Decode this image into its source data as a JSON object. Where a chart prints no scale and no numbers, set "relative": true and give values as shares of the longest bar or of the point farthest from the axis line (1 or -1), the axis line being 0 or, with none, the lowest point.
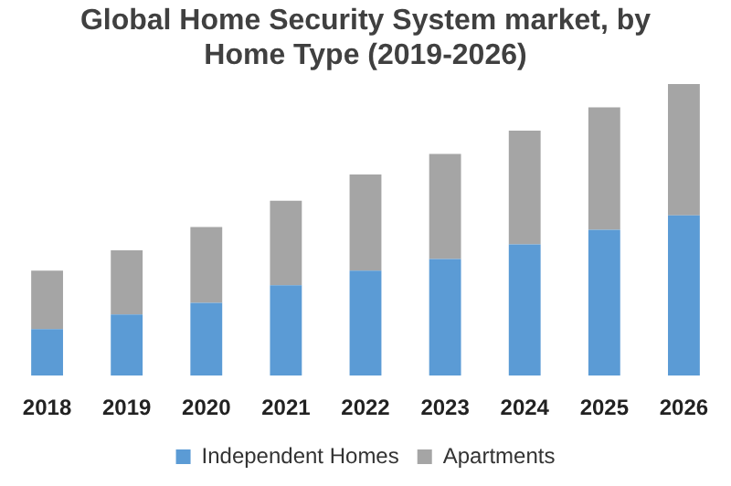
{
  "chart_data": {
    "type": "bar",
    "title": "Global Home Security System market, by Home Type (2019-2026)",
    "categories": [
      "2018",
      "2019",
      "2020",
      "2021",
      "2022",
      "2023",
      "2024",
      "2025",
      "2026"
    ],
    "stacked": true,
    "relative": true,
    "legend": "bottom",
    "grid": false,
    "series": [
      {
        "name": "Independent Homes",
        "color": "#5b9bd5",
        "values": [
          0.16,
          0.21,
          0.25,
          0.31,
          0.36,
          0.4,
          0.45,
          0.5,
          0.55
        ]
      },
      {
        "name": "Apartments",
        "color": "#a5a5a5",
        "values": [
          0.2,
          0.22,
          0.26,
          0.29,
          0.33,
          0.36,
          0.39,
          0.42,
          0.45
        ]
      }
    ]
  }
}
